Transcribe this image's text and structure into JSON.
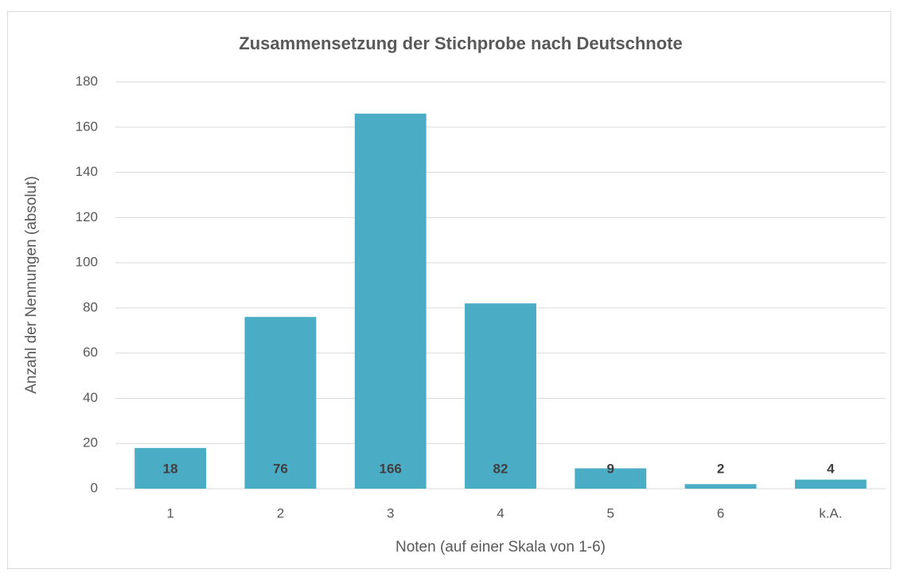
{
  "chart_data": {
    "type": "bar",
    "title": "Zusammensetzung der Stichprobe nach Deutschnote",
    "x_label": "Noten (auf einer Skala von 1-6)",
    "y_label": "Anzahl der Nennungen (absolut)",
    "categories": [
      "1",
      "2",
      "3",
      "4",
      "5",
      "6",
      "k.A."
    ],
    "values": [
      18,
      76,
      166,
      82,
      9,
      2,
      4
    ],
    "color": "#4bacc6",
    "ylim": [
      0,
      180
    ],
    "yticks": [
      0,
      20,
      40,
      60,
      80,
      100,
      120,
      140,
      160,
      180
    ],
    "grid": true
  }
}
